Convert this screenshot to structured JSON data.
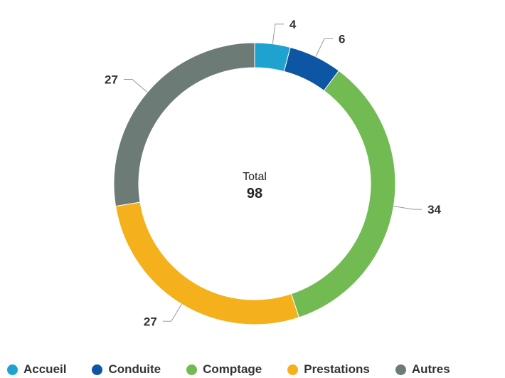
{
  "chart_data": {
    "type": "pie",
    "variant": "donut",
    "center": {
      "label": "Total",
      "value": "98"
    },
    "categories": [
      "Accueil",
      "Conduite",
      "Comptage",
      "Prestations",
      "Autres"
    ],
    "values": [
      4,
      6,
      34,
      27,
      27
    ],
    "colors": [
      "#1ea3d1",
      "#0d56a3",
      "#72bb53",
      "#f5b11b",
      "#6d7b77"
    ],
    "legend_position": "bottom"
  }
}
